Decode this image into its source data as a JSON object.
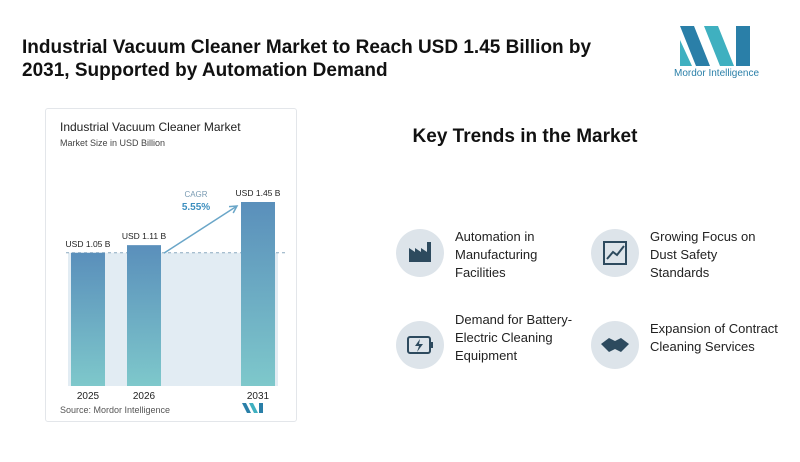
{
  "header": {
    "title": "Industrial Vacuum Cleaner Market to Reach USD 1.45 Billion by 2031, Supported by Automation Demand",
    "logo_text": "Mordor Intelligence"
  },
  "chart_data": {
    "type": "bar",
    "title": "Industrial Vacuum Cleaner Market",
    "subtitle": "Market Size in USD Billion",
    "categories": [
      "2025",
      "2026",
      "2031"
    ],
    "values": [
      1.05,
      1.11,
      1.45
    ],
    "value_labels": [
      "USD 1.05 B",
      "USD 1.11 B",
      "USD 1.45 B"
    ],
    "annotation": {
      "label": "CAGR",
      "value": "5.55%"
    },
    "source": "Source: Mordor Intelligence"
  },
  "key_trends": {
    "title": "Key Trends in the Market",
    "items": [
      "Automation in Manufacturing Facilities",
      "Growing Focus on Dust Safety Standards",
      "Demand for Battery-Electric Cleaning Equipment",
      "Expansion of Contract Cleaning Services"
    ]
  }
}
